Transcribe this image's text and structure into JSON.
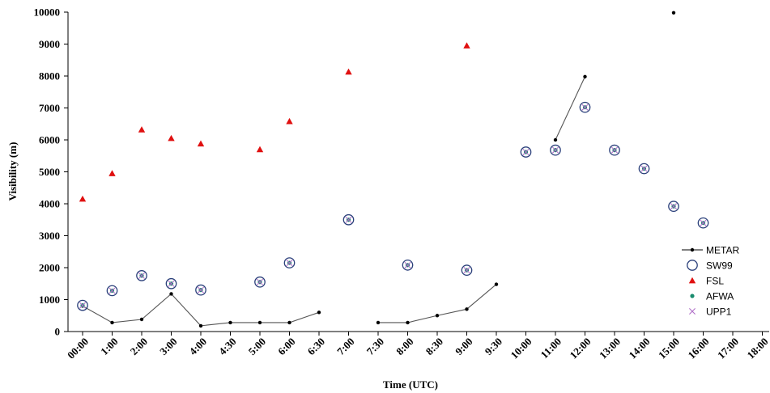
{
  "chart_data": {
    "type": "scatter",
    "title": "",
    "xlabel": "Time (UTC)",
    "ylabel": "Visibility (m)",
    "ylim": [
      0,
      10000
    ],
    "yticks": [
      0,
      1000,
      2000,
      3000,
      4000,
      5000,
      6000,
      7000,
      8000,
      9000,
      10000
    ],
    "categories": [
      "00:00",
      "1:00",
      "2:00",
      "3:00",
      "4:00",
      "4:30",
      "5:00",
      "6:00",
      "6:30",
      "7:00",
      "7:30",
      "8:00",
      "8:30",
      "9:00",
      "9:30",
      "10:00",
      "11:00",
      "12:00",
      "13:00",
      "14:00",
      "15:00",
      "16:00",
      "17:00",
      "18:00"
    ],
    "grid": false,
    "legend_position": "right",
    "series": [
      {
        "name": "METAR",
        "type": "line",
        "color": "#000000",
        "segments": [
          [
            [
              0,
              800
            ],
            [
              1,
              280
            ],
            [
              2,
              380
            ],
            [
              3,
              1180
            ],
            [
              4,
              180
            ],
            [
              5,
              280
            ],
            [
              6,
              280
            ],
            [
              7,
              280
            ],
            [
              8,
              600
            ]
          ],
          [
            [
              10,
              280
            ],
            [
              11,
              280
            ],
            [
              12,
              500
            ],
            [
              13,
              700
            ],
            [
              14,
              1480
            ]
          ],
          [
            [
              16,
              6000
            ],
            [
              17,
              7980
            ]
          ],
          [
            [
              20,
              9980
            ]
          ]
        ]
      },
      {
        "name": "SW99",
        "type": "scatter",
        "marker": "open-circle",
        "color": "#2a3f7a",
        "points": [
          [
            0,
            820
          ],
          [
            1,
            1280
          ],
          [
            2,
            1750
          ],
          [
            3,
            1500
          ],
          [
            4,
            1300
          ],
          [
            6,
            1550
          ],
          [
            7,
            2150
          ],
          [
            9,
            3500
          ],
          [
            11,
            2080
          ],
          [
            13,
            1920
          ],
          [
            15,
            5620
          ],
          [
            16,
            5680
          ],
          [
            17,
            7020
          ],
          [
            18,
            5680
          ],
          [
            19,
            5100
          ],
          [
            20,
            3920
          ],
          [
            21,
            3400
          ]
        ]
      },
      {
        "name": "FSL",
        "type": "scatter",
        "marker": "triangle",
        "color": "#e01010",
        "points": [
          [
            0,
            4150
          ],
          [
            1,
            4950
          ],
          [
            2,
            6320
          ],
          [
            3,
            6050
          ],
          [
            4,
            5880
          ],
          [
            6,
            5700
          ],
          [
            7,
            6580
          ],
          [
            9,
            8130
          ],
          [
            13,
            8950
          ]
        ]
      },
      {
        "name": "AFWA",
        "type": "scatter",
        "marker": "dot",
        "color": "#1a8c6e",
        "points": [
          [
            0,
            820
          ],
          [
            1,
            1280
          ],
          [
            2,
            1750
          ],
          [
            3,
            1500
          ],
          [
            4,
            1300
          ],
          [
            6,
            1550
          ],
          [
            7,
            2150
          ],
          [
            9,
            3500
          ],
          [
            11,
            2080
          ],
          [
            13,
            1920
          ],
          [
            15,
            5620
          ],
          [
            16,
            5680
          ],
          [
            17,
            7020
          ],
          [
            18,
            5680
          ],
          [
            19,
            5100
          ],
          [
            20,
            3920
          ],
          [
            21,
            3400
          ]
        ]
      },
      {
        "name": "UPP1",
        "type": "scatter",
        "marker": "x",
        "color": "#b070c8",
        "points": [
          [
            0,
            820
          ],
          [
            1,
            1280
          ],
          [
            2,
            1750
          ],
          [
            3,
            1500
          ],
          [
            4,
            1300
          ],
          [
            6,
            1550
          ],
          [
            7,
            2150
          ],
          [
            9,
            3500
          ],
          [
            11,
            2080
          ],
          [
            13,
            1920
          ],
          [
            15,
            5620
          ],
          [
            16,
            5680
          ],
          [
            17,
            7020
          ],
          [
            18,
            5680
          ],
          [
            19,
            5100
          ],
          [
            20,
            3920
          ],
          [
            21,
            3400
          ]
        ]
      }
    ]
  }
}
